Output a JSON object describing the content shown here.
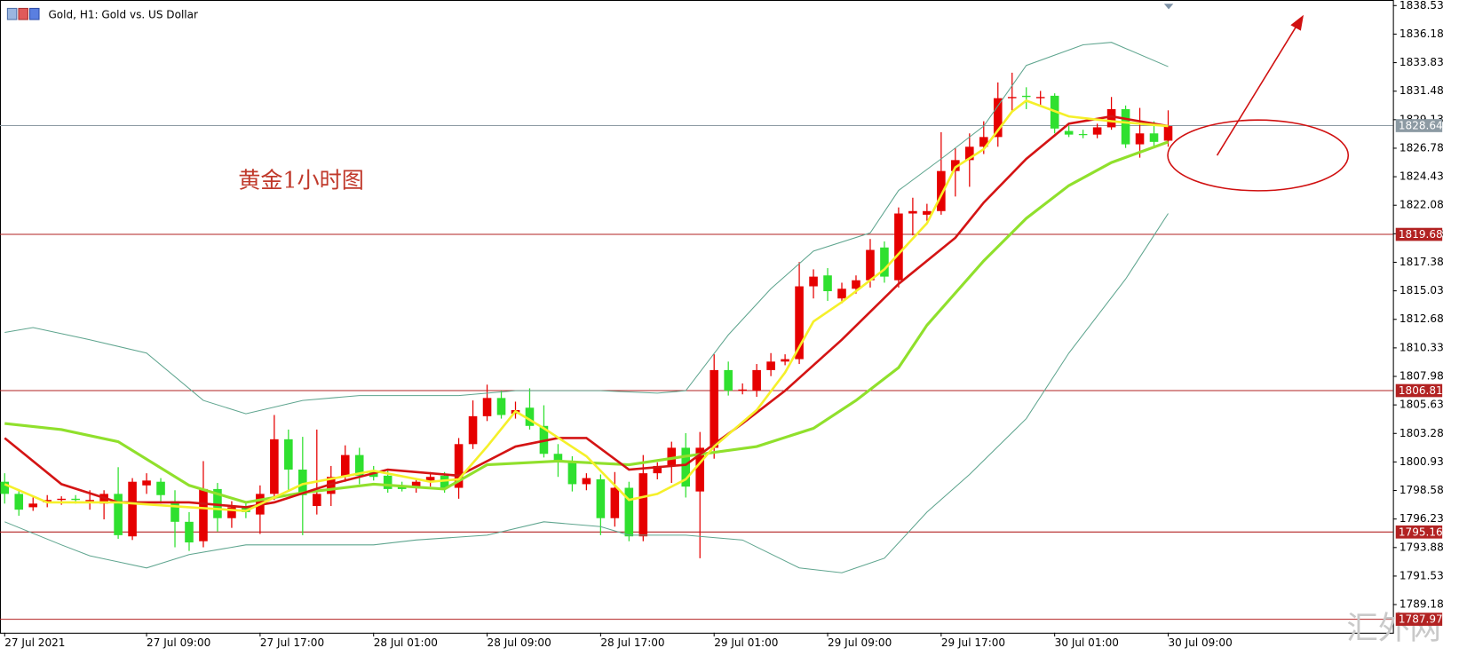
{
  "chart_data": {
    "type": "candlestick",
    "title": "Gold, H1:  Gold vs. US Dollar",
    "annotation": "黄金1小时图",
    "watermark": "汇外网",
    "up_color": "#e60000",
    "down_color": "#2fe02f",
    "xlim": [
      -0.33,
      97.84
    ],
    "ylim": [
      1786.86,
      1838.99
    ],
    "yticks": [
      1838.53,
      1836.18,
      1833.83,
      1831.48,
      1829.13,
      1826.78,
      1824.43,
      1822.08,
      1819.73,
      1817.38,
      1815.03,
      1812.68,
      1810.33,
      1807.98,
      1805.63,
      1803.28,
      1800.93,
      1798.58,
      1796.23,
      1793.88,
      1791.53,
      1789.18
    ],
    "xticks": [
      {
        "value": 0,
        "label": "27 Jul 2021"
      },
      {
        "value": 10,
        "label": "27 Jul 09:00"
      },
      {
        "value": 18,
        "label": "27 Jul 17:00"
      },
      {
        "value": 26,
        "label": "28 Jul 01:00"
      },
      {
        "value": 34,
        "label": "28 Jul 09:00"
      },
      {
        "value": 42,
        "label": "28 Jul 17:00"
      },
      {
        "value": 50,
        "label": "29 Jul 01:00"
      },
      {
        "value": 58,
        "label": "29 Jul 09:00"
      },
      {
        "value": 66,
        "label": "29 Jul 17:00"
      },
      {
        "value": 74,
        "label": "30 Jul 01:00"
      },
      {
        "value": 82,
        "label": "30 Jul 09:00"
      }
    ],
    "open": [
      1799.3,
      1798.3,
      1797.2,
      1797.6,
      1797.8,
      1797.9,
      1797.7,
      1797.5,
      1798.3,
      1794.8,
      1799.0,
      1799.3,
      1797.7,
      1796.0,
      1794.4,
      1798.7,
      1796.3,
      1797.2,
      1796.6,
      1798.3,
      1802.8,
      1800.3,
      1797.3,
      1798.3,
      1799.7,
      1801.5,
      1800.2,
      1799.8,
      1798.9,
      1798.8,
      1799.3,
      1799.8,
      1798.8,
      1802.4,
      1804.7,
      1806.2,
      1804.9,
      1805.4,
      1803.9,
      1801.6,
      1800.9,
      1799.1,
      1799.5,
      1796.3,
      1798.8,
      1794.8,
      1800.0,
      1800.6,
      1802.1,
      1798.5,
      1802.1,
      1808.5,
      1806.8,
      1806.8,
      1808.5,
      1809.2,
      1809.4,
      1815.4,
      1816.3,
      1814.4,
      1815.2,
      1815.9,
      1818.6,
      1815.9,
      1821.4,
      1821.3,
      1821.6,
      1824.9,
      1825.8,
      1826.9,
      1827.7,
      1830.9,
      1831.1,
      1830.9,
      1831.1,
      1828.2,
      1827.95,
      1827.9,
      1828.5,
      1830.0,
      1827.1,
      1828.0,
      1827.4
    ],
    "high": [
      1800.0,
      1798.7,
      1798.0,
      1798.2,
      1798.1,
      1798.2,
      1798.6,
      1798.6,
      1800.5,
      1799.6,
      1800.0,
      1799.6,
      1798.6,
      1796.8,
      1801.0,
      1799.2,
      1797.7,
      1797.6,
      1799.0,
      1804.8,
      1803.6,
      1803.0,
      1803.6,
      1800.6,
      1802.3,
      1802.1,
      1800.6,
      1800.2,
      1799.3,
      1799.6,
      1800.1,
      1800.1,
      1802.9,
      1806.0,
      1807.3,
      1806.8,
      1805.9,
      1807.0,
      1805.6,
      1802.4,
      1801.4,
      1800.0,
      1799.9,
      1800.1,
      1799.3,
      1801.5,
      1800.9,
      1802.6,
      1803.3,
      1803.4,
      1809.8,
      1809.2,
      1807.4,
      1809.0,
      1809.9,
      1809.8,
      1817.4,
      1816.8,
      1816.9,
      1815.7,
      1816.3,
      1819.3,
      1819.1,
      1821.9,
      1822.7,
      1822.2,
      1828.1,
      1826.8,
      1828.0,
      1829.0,
      1832.2,
      1833.0,
      1831.8,
      1831.5,
      1831.3,
      1828.6,
      1828.3,
      1828.8,
      1831.0,
      1830.3,
      1830.1,
      1829.0,
      1829.9
    ],
    "low": [
      1797.5,
      1796.5,
      1796.9,
      1797.2,
      1797.4,
      1797.5,
      1797.0,
      1796.2,
      1794.6,
      1794.5,
      1798.3,
      1797.5,
      1793.9,
      1793.6,
      1793.9,
      1795.2,
      1795.5,
      1796.3,
      1795.0,
      1797.8,
      1798.6,
      1794.9,
      1796.6,
      1797.3,
      1799.3,
      1799.1,
      1799.4,
      1798.4,
      1798.5,
      1798.4,
      1798.9,
      1798.4,
      1797.9,
      1802.0,
      1804.3,
      1804.5,
      1804.5,
      1803.6,
      1801.3,
      1799.7,
      1798.5,
      1798.6,
      1794.9,
      1795.6,
      1794.4,
      1794.4,
      1799.5,
      1799.2,
      1798.0,
      1793.0,
      1801.2,
      1806.4,
      1806.5,
      1806.3,
      1808.0,
      1808.9,
      1809.0,
      1814.4,
      1814.2,
      1814.0,
      1814.8,
      1815.3,
      1815.7,
      1815.3,
      1819.6,
      1820.8,
      1821.3,
      1822.8,
      1823.6,
      1826.3,
      1826.9,
      1829.8,
      1830.0,
      1830.3,
      1828.0,
      1827.7,
      1827.6,
      1827.6,
      1828.3,
      1826.8,
      1826.0,
      1826.8,
      1826.9
    ],
    "close": [
      1798.3,
      1797.0,
      1797.5,
      1797.8,
      1797.9,
      1797.8,
      1797.8,
      1798.3,
      1794.9,
      1799.3,
      1799.4,
      1798.2,
      1796.0,
      1794.3,
      1798.7,
      1796.3,
      1797.2,
      1796.8,
      1798.3,
      1802.8,
      1800.3,
      1798.2,
      1798.3,
      1799.7,
      1801.5,
      1799.8,
      1799.7,
      1798.7,
      1798.7,
      1799.3,
      1799.7,
      1798.8,
      1802.4,
      1804.7,
      1806.2,
      1804.8,
      1805.2,
      1803.9,
      1801.6,
      1800.9,
      1799.1,
      1799.6,
      1796.3,
      1798.8,
      1794.8,
      1800.0,
      1800.6,
      1802.1,
      1798.9,
      1802.1,
      1808.5,
      1806.8,
      1806.9,
      1808.5,
      1809.2,
      1809.4,
      1815.4,
      1816.2,
      1815.0,
      1815.2,
      1815.9,
      1818.4,
      1816.2,
      1821.4,
      1821.6,
      1821.6,
      1824.9,
      1825.8,
      1826.9,
      1827.7,
      1830.9,
      1831.0,
      1831.0,
      1831.0,
      1828.4,
      1827.9,
      1827.9,
      1828.5,
      1830.0,
      1827.1,
      1828.0,
      1827.3,
      1828.6
    ],
    "lines": [
      {
        "color": "#5fa58f",
        "width": 1,
        "x": [
          0,
          2,
          6,
          10,
          14,
          17,
          21,
          25,
          29,
          32,
          36,
          42,
          46,
          48,
          51,
          54,
          57,
          61,
          63,
          66,
          69,
          72,
          76,
          78,
          82
        ],
        "values": [
          1811.6,
          1812.0,
          1811.0,
          1809.9,
          1806.0,
          1804.9,
          1806.0,
          1806.4,
          1806.4,
          1806.4,
          1806.8,
          1806.8,
          1806.6,
          1806.8,
          1811.4,
          1815.2,
          1818.3,
          1819.8,
          1823.3,
          1825.9,
          1828.6,
          1833.6,
          1835.3,
          1835.5,
          1833.5
        ]
      },
      {
        "color": "#5fa58f",
        "width": 1,
        "x": [
          0,
          4,
          6,
          10,
          13,
          17,
          21,
          26,
          29,
          34,
          38,
          42,
          44,
          48,
          52,
          56,
          59,
          62,
          65,
          68,
          72,
          75,
          79,
          82
        ],
        "values": [
          1796.0,
          1794.1,
          1793.2,
          1792.2,
          1793.3,
          1794.1,
          1794.1,
          1794.1,
          1794.5,
          1794.9,
          1796.0,
          1795.6,
          1794.9,
          1794.9,
          1794.5,
          1792.2,
          1791.8,
          1793.0,
          1796.8,
          1799.9,
          1804.5,
          1809.9,
          1816.0,
          1821.4
        ]
      },
      {
        "color": "#90e02c",
        "width": 3,
        "x": [
          0,
          4,
          8,
          13,
          17,
          21,
          26,
          31,
          34,
          39,
          44,
          48,
          53,
          57,
          60,
          63,
          65,
          69,
          72,
          75,
          78,
          82
        ],
        "values": [
          1804.1,
          1803.6,
          1802.6,
          1799.0,
          1797.6,
          1798.4,
          1799.1,
          1798.7,
          1800.7,
          1801.0,
          1800.7,
          1801.4,
          1802.2,
          1803.7,
          1806.0,
          1808.7,
          1812.2,
          1817.5,
          1821.0,
          1823.7,
          1825.6,
          1827.3
        ]
      },
      {
        "color": "#d41414",
        "width": 2.5,
        "x": [
          0,
          4,
          8,
          13,
          17,
          19,
          23,
          27,
          32,
          36,
          39,
          41,
          44,
          48,
          52,
          55,
          59,
          63,
          67,
          69,
          72,
          75,
          78,
          82
        ],
        "values": [
          1802.9,
          1799.1,
          1797.6,
          1797.6,
          1797.2,
          1797.6,
          1799.1,
          1800.3,
          1799.8,
          1802.2,
          1802.9,
          1802.9,
          1800.3,
          1800.7,
          1804.1,
          1806.8,
          1811.0,
          1815.6,
          1819.4,
          1822.3,
          1825.9,
          1828.8,
          1829.4,
          1828.6
        ]
      },
      {
        "color": "#f5f02a",
        "width": 2.5,
        "x": [
          0,
          3,
          8,
          13,
          17,
          21,
          26,
          30,
          32,
          34,
          36,
          38,
          41,
          44,
          46,
          48,
          50,
          53,
          55,
          57,
          59,
          62,
          65,
          67,
          69,
          71,
          72,
          75,
          78,
          82
        ],
        "values": [
          1799.1,
          1797.6,
          1797.6,
          1797.2,
          1796.9,
          1799.1,
          1800.2,
          1799.3,
          1799.5,
          1802.2,
          1805.1,
          1803.7,
          1801.4,
          1797.8,
          1798.3,
          1799.5,
          1802.2,
          1805.2,
          1808.3,
          1812.5,
          1814.1,
          1816.8,
          1820.6,
          1825.2,
          1826.7,
          1829.8,
          1830.7,
          1829.4,
          1829.0,
          1828.6
        ]
      }
    ],
    "levels": [
      {
        "value": 1828.64,
        "color": "#8c9aa3"
      },
      {
        "value": 1819.68,
        "color": "#b22222"
      },
      {
        "value": 1806.81,
        "color": "#b22222"
      },
      {
        "value": 1795.16,
        "color": "#b22222"
      },
      {
        "value": 1787.97,
        "color": "#b22222"
      }
    ]
  }
}
